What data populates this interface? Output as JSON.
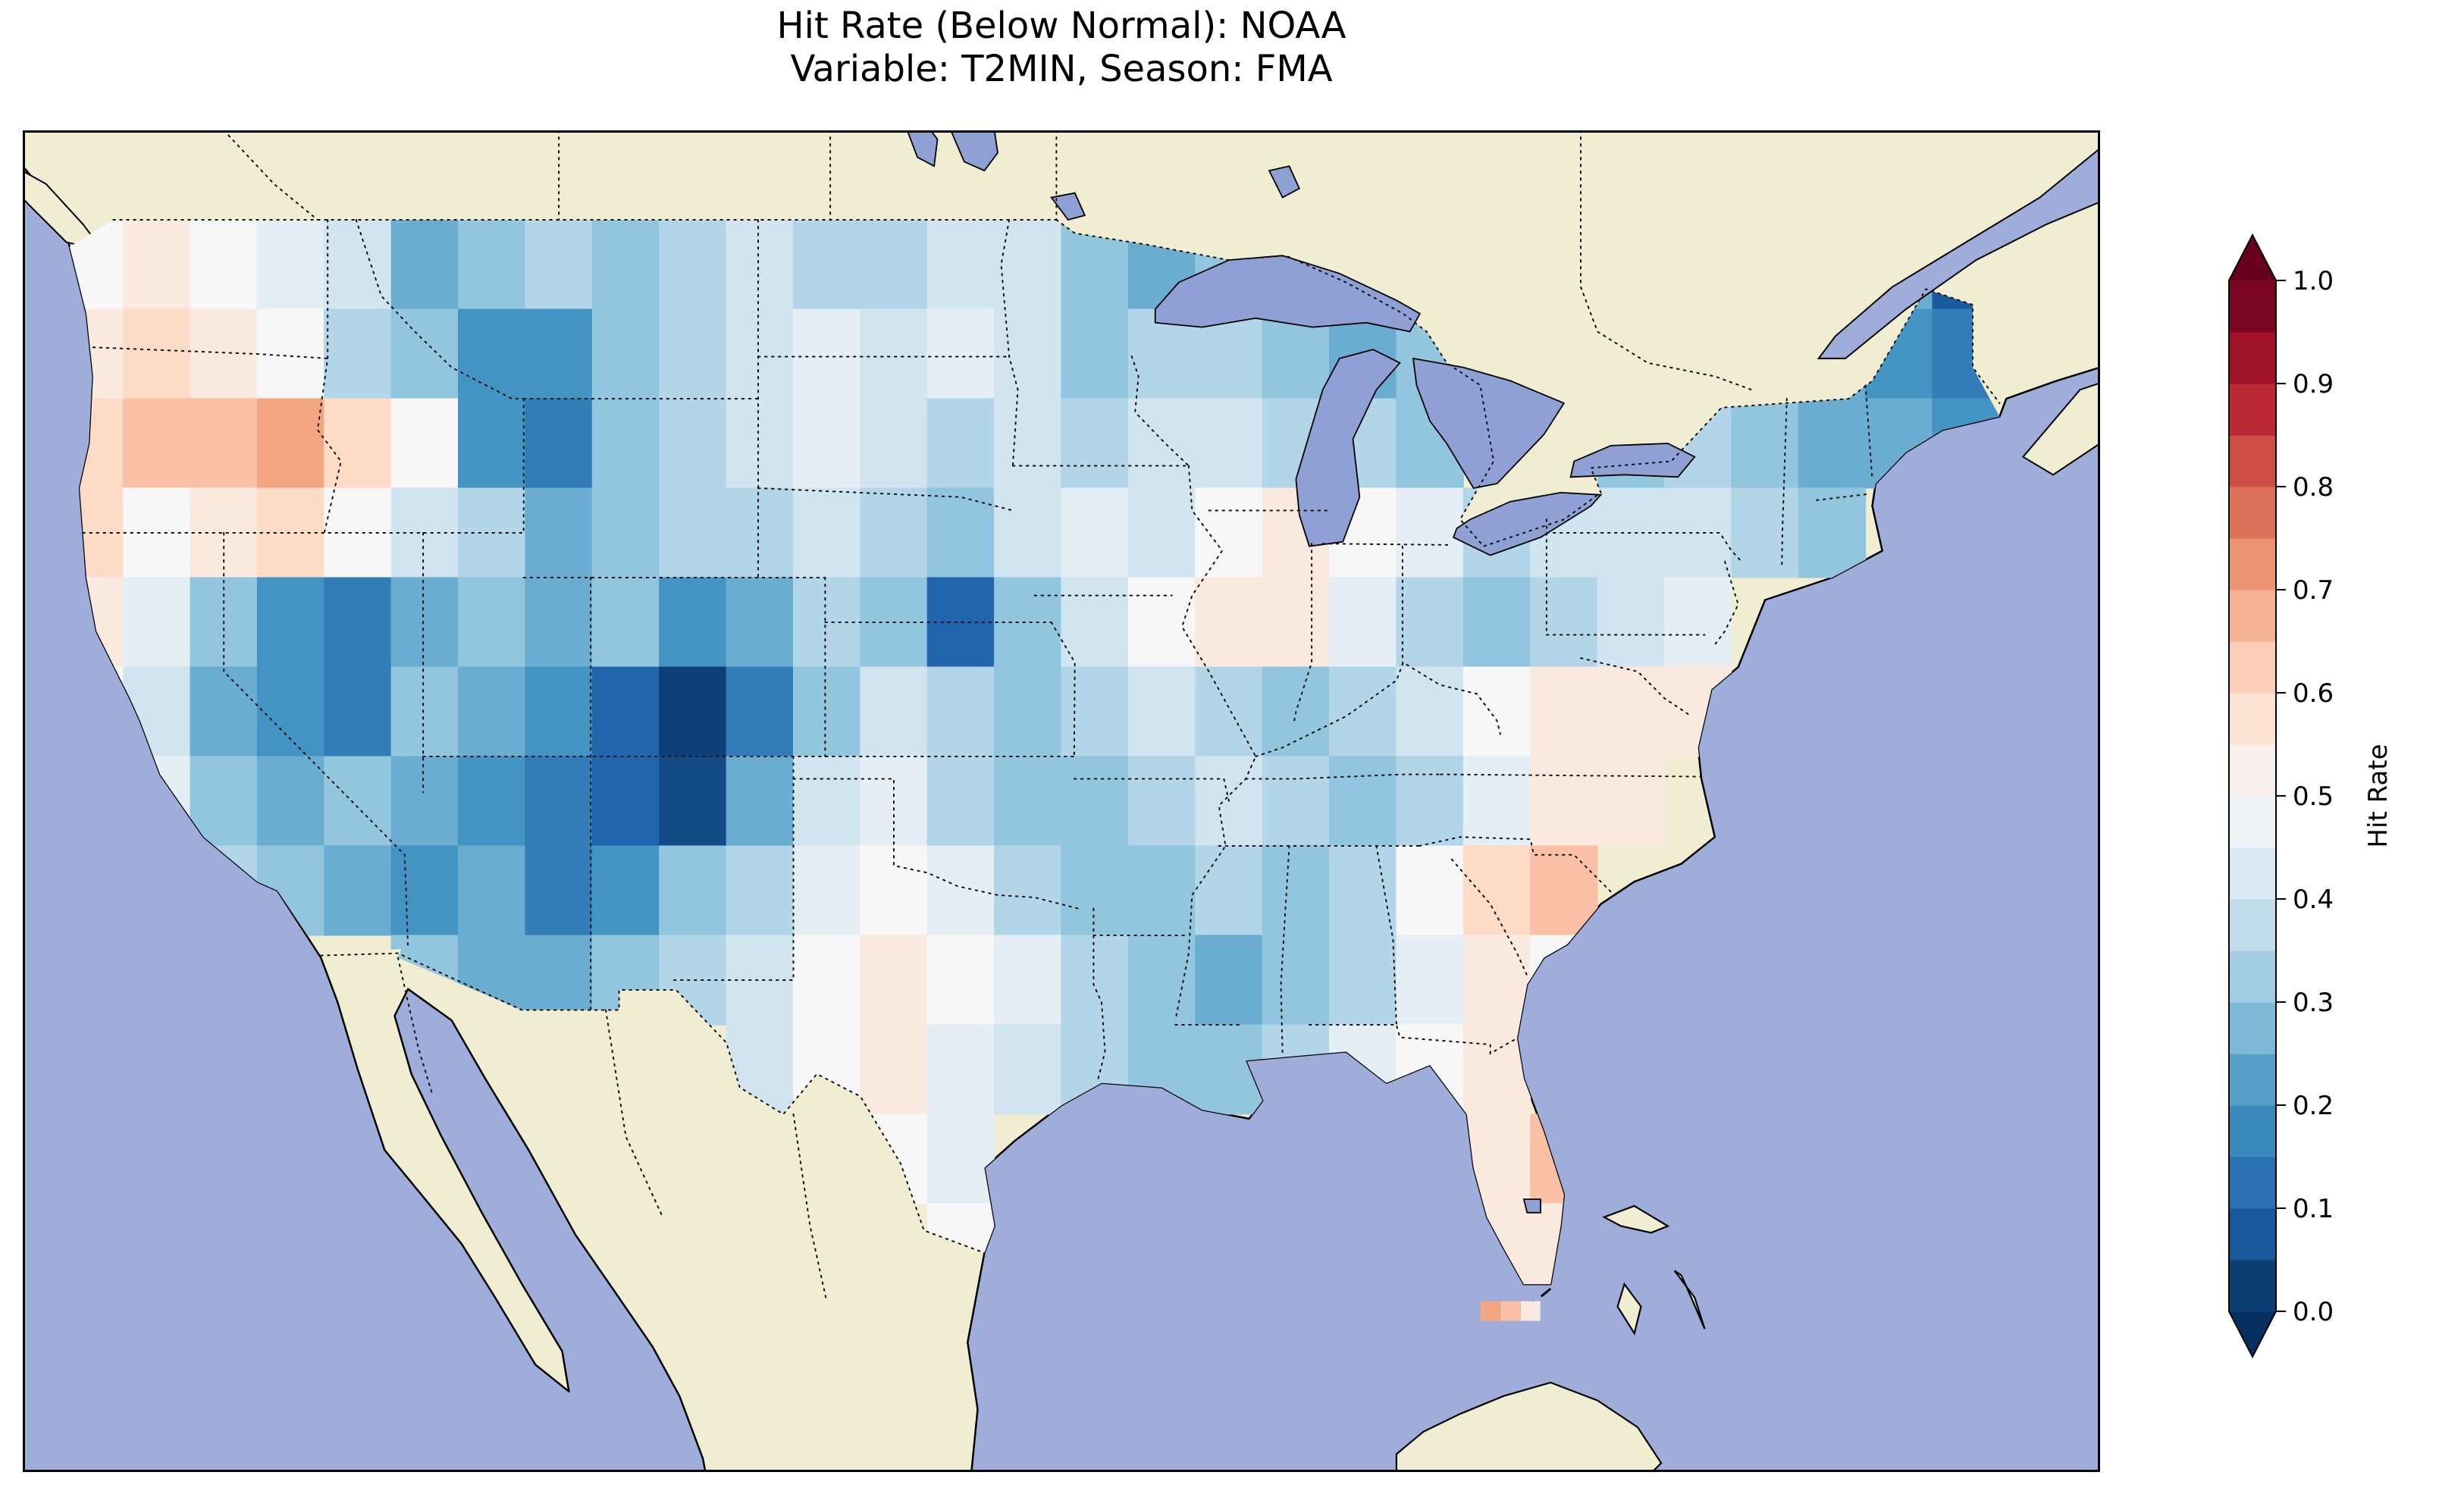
{
  "title": {
    "line1": "Hit Rate (Below Normal): NOAA",
    "line2": "Variable: T2MIN, Season: FMA"
  },
  "colorbar": {
    "label": "Hit Rate",
    "ticks": [
      "0.0",
      "0.1",
      "0.2",
      "0.3",
      "0.4",
      "0.5",
      "0.6",
      "0.7",
      "0.8",
      "0.9",
      "1.0"
    ],
    "vmin": 0,
    "vmax": 1,
    "n_bands": 20,
    "extend": "both"
  },
  "colors": {
    "ocean": "#9fadda",
    "land": "#f0edd3",
    "lakes": "#8fa0d4",
    "frame": "#000000",
    "border_dots": "#111111",
    "cmap_stops": [
      "#053061",
      "#2166ac",
      "#4393c3",
      "#92c5de",
      "#d1e5f0",
      "#f7f7f7",
      "#fddbc7",
      "#f4a582",
      "#d6604d",
      "#b2182b",
      "#67001f"
    ]
  },
  "chart_data": {
    "type": "heatmap",
    "title": "Hit Rate (Below Normal): NOAA",
    "subtitle": "Variable: T2MIN, Season: FMA",
    "dataset": "NOAA",
    "variable": "T2MIN",
    "season": "FMA",
    "value_name": "Hit Rate",
    "colormap": "RdBu_r",
    "vmin": 0.0,
    "vmax": 1.0,
    "legend_position": "right",
    "grid": {
      "lon_start": -125,
      "lat_start": 49,
      "dlon": 2,
      "dlat": -2,
      "ncols": 29,
      "nrows": 12
    },
    "values": [
      [
        0.5,
        0.55,
        0.5,
        0.45,
        0.4,
        0.25,
        0.3,
        0.35,
        0.3,
        0.35,
        0.4,
        0.35,
        0.35,
        0.4,
        0.4,
        0.3,
        0.25,
        0.3,
        null,
        null,
        null,
        null,
        null,
        null,
        null,
        null,
        null,
        0.25,
        0.08
      ],
      [
        0.55,
        0.6,
        0.55,
        0.5,
        0.35,
        0.3,
        0.2,
        0.2,
        0.3,
        0.35,
        0.4,
        0.45,
        0.4,
        0.45,
        0.4,
        0.3,
        0.35,
        0.35,
        0.3,
        0.25,
        0.3,
        null,
        null,
        null,
        null,
        null,
        0.25,
        0.2,
        0.15
      ],
      [
        0.6,
        0.65,
        0.65,
        0.7,
        0.6,
        0.5,
        0.2,
        0.15,
        0.3,
        0.35,
        0.4,
        0.45,
        0.4,
        0.35,
        0.4,
        0.35,
        0.4,
        0.4,
        0.35,
        0.35,
        0.3,
        null,
        null,
        0.3,
        0.35,
        0.3,
        0.25,
        0.25,
        0.2
      ],
      [
        0.6,
        0.5,
        0.55,
        0.6,
        0.5,
        0.4,
        0.35,
        0.25,
        0.3,
        0.35,
        0.35,
        0.4,
        0.35,
        0.3,
        0.4,
        0.45,
        0.4,
        0.5,
        0.55,
        0.5,
        0.45,
        0.35,
        0.4,
        0.4,
        0.4,
        0.35,
        0.3,
        null,
        null
      ],
      [
        0.55,
        0.45,
        0.3,
        0.2,
        0.15,
        0.25,
        0.3,
        0.25,
        0.3,
        0.2,
        0.25,
        0.35,
        0.3,
        0.1,
        0.3,
        0.4,
        0.5,
        0.55,
        0.55,
        0.45,
        0.35,
        0.3,
        0.35,
        0.4,
        0.45,
        null,
        null,
        null,
        null
      ],
      [
        0.5,
        0.4,
        0.25,
        0.2,
        0.15,
        0.3,
        0.25,
        0.2,
        0.1,
        0.03,
        0.15,
        0.3,
        0.4,
        0.35,
        0.3,
        0.35,
        0.4,
        0.35,
        0.3,
        0.35,
        0.4,
        0.5,
        0.55,
        0.55,
        0.55,
        null,
        null,
        null,
        null
      ],
      [
        0.55,
        0.45,
        0.3,
        0.25,
        0.3,
        0.25,
        0.2,
        0.15,
        0.1,
        0.05,
        0.25,
        0.4,
        0.45,
        0.35,
        0.3,
        0.3,
        0.35,
        0.4,
        0.35,
        0.3,
        0.35,
        0.45,
        0.55,
        0.55,
        null,
        null,
        null,
        null,
        null
      ],
      [
        null,
        0.5,
        0.35,
        0.3,
        0.25,
        0.2,
        0.25,
        0.15,
        0.2,
        0.3,
        0.35,
        0.45,
        0.5,
        0.45,
        0.35,
        0.3,
        0.3,
        0.35,
        0.3,
        0.35,
        0.5,
        0.6,
        0.65,
        null,
        null,
        null,
        null,
        null,
        null
      ],
      [
        null,
        null,
        null,
        null,
        null,
        0.3,
        0.25,
        0.25,
        0.3,
        0.35,
        0.4,
        0.5,
        0.55,
        0.5,
        0.45,
        0.35,
        0.3,
        0.25,
        0.3,
        0.35,
        0.45,
        0.55,
        0.5,
        null,
        null,
        null,
        null,
        null,
        null
      ],
      [
        null,
        null,
        null,
        null,
        null,
        null,
        null,
        null,
        null,
        null,
        0.4,
        0.5,
        0.55,
        0.45,
        0.4,
        0.35,
        0.3,
        0.3,
        0.35,
        0.45,
        0.5,
        0.55,
        null,
        null,
        null,
        null,
        null,
        null,
        null
      ],
      [
        null,
        null,
        null,
        null,
        null,
        null,
        null,
        null,
        null,
        null,
        null,
        null,
        0.5,
        0.45,
        null,
        null,
        null,
        null,
        null,
        null,
        null,
        0.55,
        0.65,
        null,
        null,
        null,
        null,
        null,
        null
      ],
      [
        null,
        null,
        null,
        null,
        null,
        null,
        null,
        null,
        null,
        null,
        null,
        null,
        null,
        0.5,
        null,
        null,
        null,
        null,
        null,
        null,
        null,
        0.55,
        0.55,
        null,
        null,
        null,
        null,
        null,
        null
      ]
    ],
    "extra_cells": [
      {
        "lon": -82.2,
        "lat": 24.6,
        "value": 0.7
      },
      {
        "lon": -81.6,
        "lat": 24.6,
        "value": 0.65
      },
      {
        "lon": -81.0,
        "lat": 24.6,
        "value": 0.55
      }
    ]
  }
}
